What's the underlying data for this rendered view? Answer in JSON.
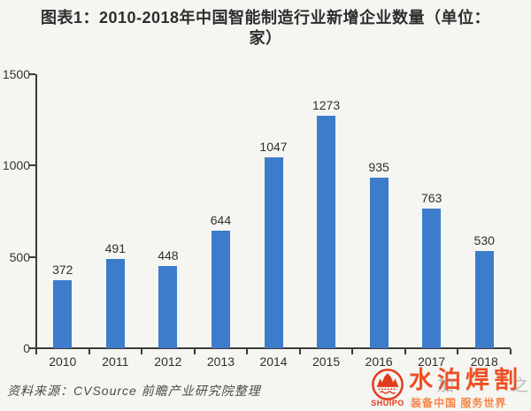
{
  "title": {
    "line1": "图表1：2010-2018年中国智能制造行业新增企业数量（单位：",
    "line2": "家）"
  },
  "chart_data": {
    "type": "bar",
    "title": "图表1：2010-2018年中国智能制造行业新增企业数量（单位：家）",
    "categories": [
      "2010",
      "2011",
      "2012",
      "2013",
      "2014",
      "2015",
      "2016",
      "2017",
      "2018"
    ],
    "values": [
      372,
      491,
      448,
      644,
      1047,
      1273,
      935,
      763,
      530
    ],
    "xlabel": "",
    "ylabel": "",
    "ylim": [
      0,
      1500
    ],
    "yticks": [
      0,
      500,
      1000,
      1500
    ],
    "bar_color": "#3d7ccb",
    "grid": false,
    "legend": "none",
    "data_labels": true
  },
  "source": {
    "text": "资料来源：CVSource 前瞻产业研究院整理"
  },
  "brand": {
    "logo_icon": "shuipo-mountain-circle-icon",
    "romanized": "SHUIPO",
    "name": "水泊焊割",
    "slogan": "装备中国 服务世界",
    "name_color": "#f04f23",
    "slogan_color": "#f58345"
  },
  "watermark": {
    "text": "加 之"
  }
}
